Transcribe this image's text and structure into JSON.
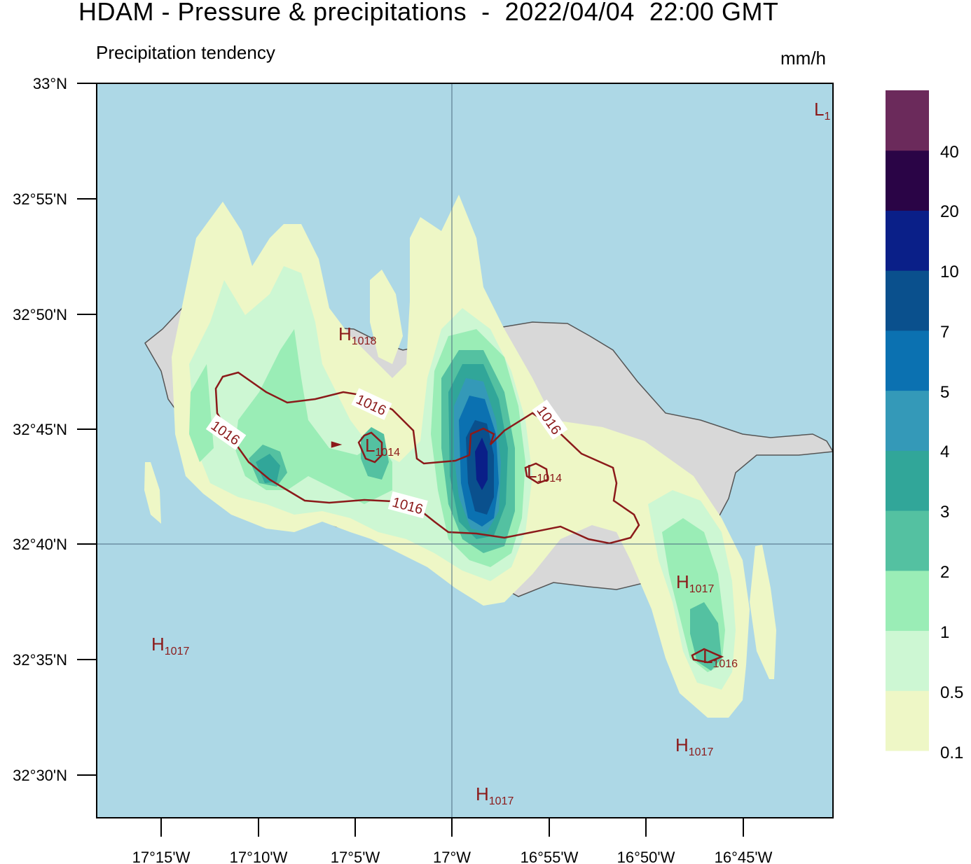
{
  "title": "HDAM - Pressure & precipitations  -  2022/04/04  22:00 GMT",
  "subtitle": "Precipitation tendency",
  "units": "mm/h",
  "colors": {
    "sea": "#add8e6",
    "land": "#d8d8d8",
    "isobar": "#8b1a1a"
  },
  "axes": {
    "y_ticks": [
      "33°N",
      "32°55'N",
      "32°50'N",
      "32°45'N",
      "32°40'N",
      "32°35'N",
      "32°30'N"
    ],
    "x_ticks": [
      "17°15'W",
      "17°10'W",
      "17°5'W",
      "17°W",
      "16°55'W",
      "16°50'W",
      "16°45'W"
    ]
  },
  "colorbar": {
    "labels": [
      "0.1",
      "0.5",
      "1",
      "2",
      "3",
      "4",
      "5",
      "7",
      "10",
      "20",
      "40"
    ],
    "colors": [
      "#eef7c6",
      "#cdf7d3",
      "#9aedb6",
      "#54c1a1",
      "#31a699",
      "#3499b8",
      "#0b71b1",
      "#0a508d",
      "#0a1f88",
      "#2a0446",
      "#6b2a5b"
    ]
  },
  "isobars": [
    {
      "value": "1016"
    },
    {
      "value": "1016"
    },
    {
      "value": "1016"
    },
    {
      "value": "1016"
    }
  ],
  "pressure_centers": [
    {
      "letter": "H",
      "value": "1018"
    },
    {
      "letter": "L",
      "value": "1014"
    },
    {
      "letter": "L",
      "value": "1014"
    },
    {
      "letter": "H",
      "value": "1017"
    },
    {
      "letter": "H",
      "value": "1017"
    },
    {
      "letter": "L",
      "value": "1016"
    },
    {
      "letter": "H",
      "value": "1017"
    },
    {
      "letter": "H",
      "value": "1017"
    },
    {
      "letter": "L",
      "value": "1"
    }
  ]
}
